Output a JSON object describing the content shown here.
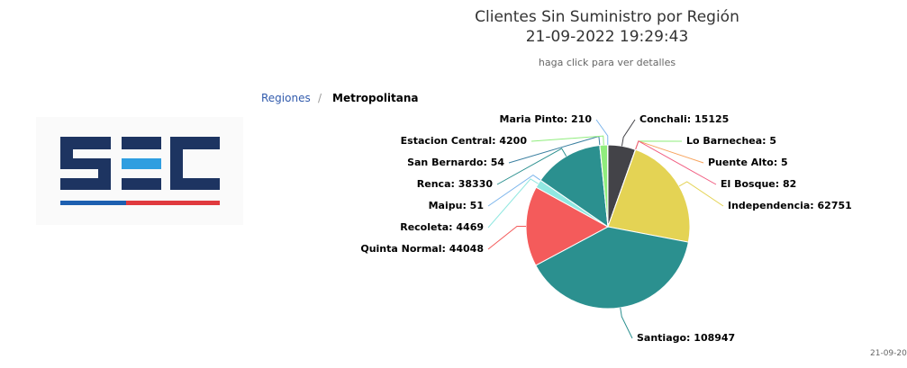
{
  "chart_data": {
    "type": "pie",
    "title_lines": [
      "Clientes Sin Suministro por Región",
      "21-09-2022 19:29:43"
    ],
    "subtitle": "haga click para ver detalles",
    "values": [
      15125,
      5,
      5,
      82,
      62751,
      108947,
      44048,
      4469,
      51,
      38330,
      54,
      4200,
      210
    ],
    "value_labels": [
      "Conchali: 15125",
      "Lo Barnechea: 5",
      "Puente Alto: 5",
      "El Bosque: 82",
      "Independencia: 62751",
      "Santiago: 108947",
      "Quinta Normal: 44048",
      "Recoleta: 4469",
      "Maipu: 51",
      "Renca: 38330",
      "San Bernardo: 54",
      "Estacion Central: 4200",
      "Maria Pinto: 210"
    ],
    "colors": [
      "#434348",
      "#90ed7d",
      "#f7a35c",
      "#f15c80",
      "#e4d354",
      "#2b908f",
      "#f45b5b",
      "#91e8e1",
      "#7cb5ec",
      "#2b908f",
      "#3a7fa0",
      "#90ed7d",
      "#7cb5ec"
    ]
  },
  "breadcrumb": {
    "items": [
      "Regiones",
      "Metropolitana"
    ],
    "separator": "/"
  },
  "footer": "21-09-20"
}
